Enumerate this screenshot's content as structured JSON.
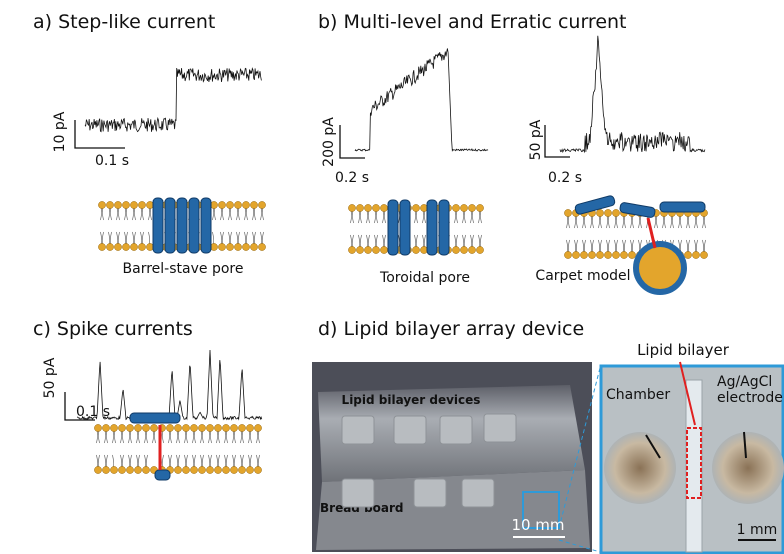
{
  "panels": [
    {
      "label": "a) Step-like current",
      "traces": [
        {
          "y_scale": "10 pA",
          "x_scale": "0.1 s"
        }
      ],
      "models": [
        "Barrel-stave pore"
      ]
    },
    {
      "label": "b) Multi-level and Erratic current",
      "traces": [
        {
          "y_scale": "200 pA",
          "x_scale": "0.2 s"
        },
        {
          "y_scale": "50 pA",
          "x_scale": "0.2 s"
        }
      ],
      "models": [
        "Toroidal pore",
        "Carpet model"
      ]
    },
    {
      "label": "c) Spike currents",
      "traces": [
        {
          "y_scale": "50 pA",
          "x_scale": "0.1 s"
        }
      ]
    },
    {
      "label": "d) Lipid bilayer array device",
      "photo": {
        "devices": "Lipid bilayer devices",
        "board": "Bread board",
        "scale": "10 mm"
      },
      "inset": {
        "bilayer": "Lipid bilayer",
        "chamber": "Chamber",
        "electrode": "Ag/AgCl electrode",
        "scale": "1 mm"
      }
    }
  ]
}
